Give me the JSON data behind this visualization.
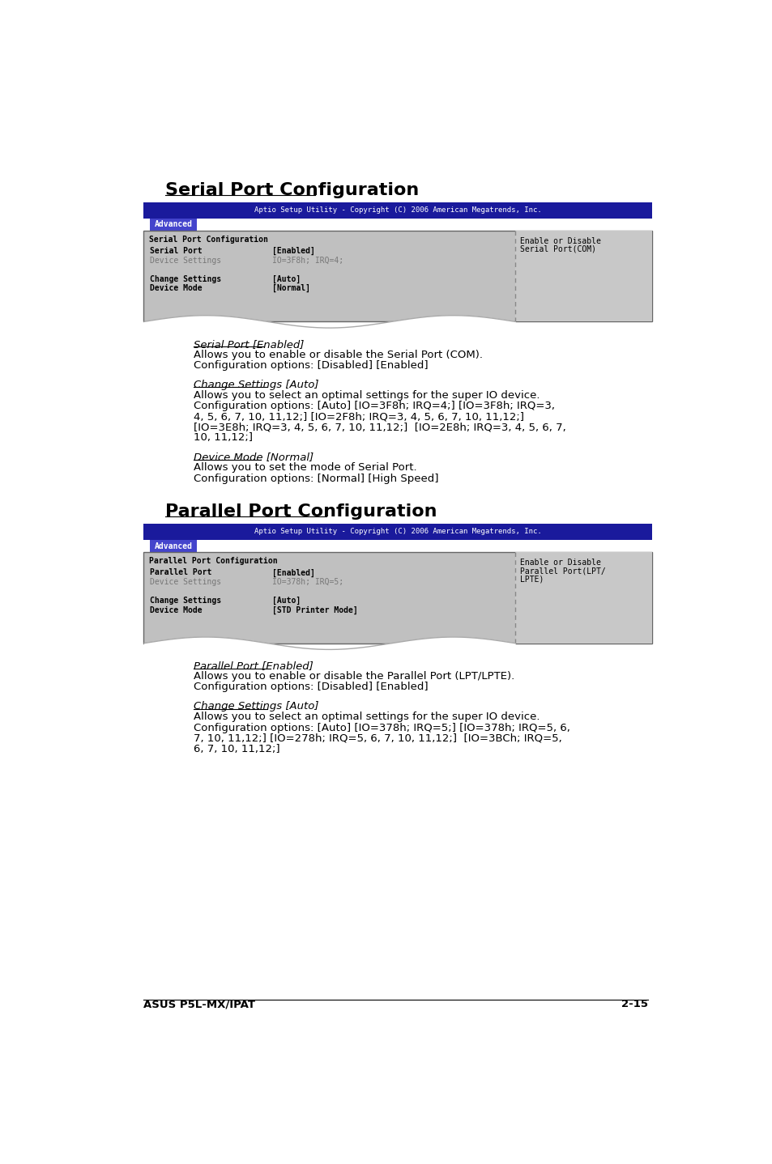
{
  "bg_color": "#ffffff",
  "section1_title": "Serial Port Configuration",
  "section2_title": "Parallel Port Configuration",
  "bios_header_bg": "#1a1a9c",
  "bios_header_text": "Aptio Setup Utility - Copyright (C) 2006 American Megatrends, Inc.",
  "bios_tab_bg": "#4444cc",
  "bios_tab_text": "Advanced",
  "bios_body_bg": "#c0c0c0",
  "bios_right_panel_bg": "#c8c8c8",
  "bios_divider_color": "#888888",
  "screen1": {
    "title_row": "Serial Port Configuration",
    "rows": [
      {
        "label": "Serial Port",
        "value": "[Enabled]",
        "bold_label": true,
        "bold_value": true,
        "grayed": false
      },
      {
        "label": "Device Settings",
        "value": "IO=3F8h; IRQ=4;",
        "bold_label": false,
        "bold_value": false,
        "grayed": true
      },
      {
        "label": "",
        "value": "",
        "bold_label": false,
        "bold_value": false,
        "grayed": false
      },
      {
        "label": "Change Settings",
        "value": "[Auto]",
        "bold_label": true,
        "bold_value": true,
        "grayed": false
      },
      {
        "label": "Device Mode",
        "value": "[Normal]",
        "bold_label": true,
        "bold_value": true,
        "grayed": false
      }
    ],
    "right_panel": "Enable or Disable\nSerial Port(COM)"
  },
  "screen2": {
    "title_row": "Parallel Port Configuration",
    "rows": [
      {
        "label": "Parallel Port",
        "value": "[Enabled]",
        "bold_label": true,
        "bold_value": true,
        "grayed": false
      },
      {
        "label": "Device Settings",
        "value": "IO=378h; IRQ=5;",
        "bold_label": false,
        "bold_value": false,
        "grayed": true
      },
      {
        "label": "",
        "value": "",
        "bold_label": false,
        "bold_value": false,
        "grayed": false
      },
      {
        "label": "Change Settings",
        "value": "[Auto]",
        "bold_label": true,
        "bold_value": true,
        "grayed": false
      },
      {
        "label": "Device Mode",
        "value": "[STD Printer Mode]",
        "bold_label": true,
        "bold_value": true,
        "grayed": false
      }
    ],
    "right_panel": "Enable or Disable\nParallel Port(LPT/\nLPTE)"
  },
  "text_blocks_1": [
    {
      "heading": "Serial Port [Enabled]",
      "lines": [
        "Allows you to enable or disable the Serial Port (COM).",
        "Configuration options: [Disabled] [Enabled]"
      ]
    },
    {
      "heading": "Change Settings [Auto]",
      "lines": [
        "Allows you to select an optimal settings for the super IO device.",
        "Configuration options: [Auto] [IO=3F8h; IRQ=4;] [IO=3F8h; IRQ=3,",
        "4, 5, 6, 7, 10, 11,12;] [IO=2F8h; IRQ=3, 4, 5, 6, 7, 10, 11,12;]",
        "[IO=3E8h; IRQ=3, 4, 5, 6, 7, 10, 11,12;]  [IO=2E8h; IRQ=3, 4, 5, 6, 7,",
        "10, 11,12;]"
      ]
    },
    {
      "heading": "Device Mode [Normal]",
      "lines": [
        "Allows you to set the mode of Serial Port.",
        "Configuration options: [Normal] [High Speed]"
      ]
    }
  ],
  "text_blocks_2": [
    {
      "heading": "Parallel Port [Enabled]",
      "lines": [
        "Allows you to enable or disable the Parallel Port (LPT/LPTE).",
        "Configuration options: [Disabled] [Enabled]"
      ]
    },
    {
      "heading": "Change Settings [Auto]",
      "lines": [
        "Allows you to select an optimal settings for the super IO device.",
        "Configuration options: [Auto] [IO=378h; IRQ=5;] [IO=378h; IRQ=5, 6,",
        "7, 10, 11,12;] [IO=278h; IRQ=5, 6, 7, 10, 11,12;]  [IO=3BCh; IRQ=5,",
        "6, 7, 10, 11,12;]"
      ]
    }
  ],
  "footer_left": "ASUS P5L-MX/IPAT",
  "footer_right": "2-15",
  "title_fontsize": 16,
  "body_fontsize": 9.5,
  "heading_fontsize": 9.5
}
